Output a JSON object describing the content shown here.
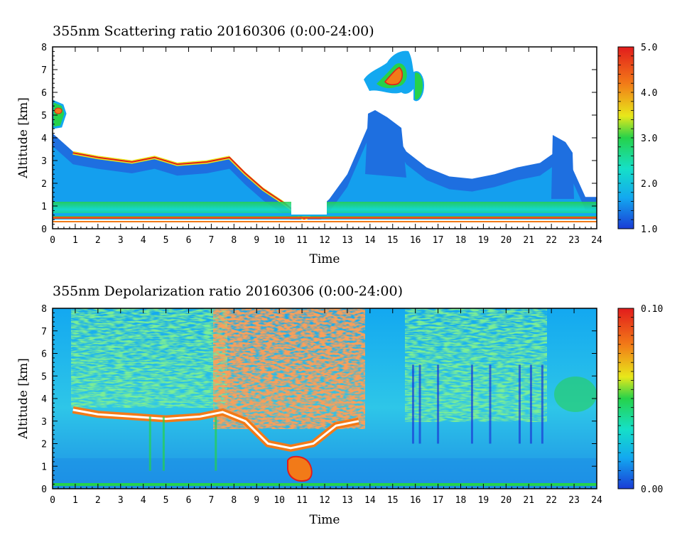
{
  "chart_data": [
    {
      "type": "heatmap",
      "title": "355nm Scattering ratio  20160306 (0:00-24:00)",
      "xlabel": "Time",
      "ylabel": "Altitude [km]",
      "xlim": [
        0,
        24
      ],
      "ylim": [
        0,
        8
      ],
      "xticks": [
        "0",
        "1",
        "2",
        "3",
        "4",
        "5",
        "6",
        "7",
        "8",
        "9",
        "10",
        "11",
        "12",
        "13",
        "14",
        "15",
        "16",
        "17",
        "18",
        "19",
        "20",
        "21",
        "22",
        "23",
        "24"
      ],
      "yticks": [
        "0",
        "1",
        "2",
        "3",
        "4",
        "5",
        "6",
        "7",
        "8"
      ],
      "colorbar": {
        "range": [
          1.0,
          5.0
        ],
        "labels": [
          "1.0",
          "2.0",
          "3.0",
          "4.0",
          "5.0"
        ],
        "colors": [
          "#1a3cd6",
          "#13a8f0",
          "#15e0c8",
          "#26d24a",
          "#e8e81a",
          "#f27a18",
          "#e21c1c"
        ]
      },
      "layers": [
        {
          "name": "cloud-top",
          "time": [
            0,
            0.9,
            2,
            3.5,
            4.5,
            5.5,
            6.8,
            7.8,
            8.5,
            9.3,
            10.2,
            11.2,
            12.2,
            13,
            14,
            15,
            15.6,
            16.5,
            17.5,
            18.5,
            19.5,
            20.5,
            21.5,
            22.5,
            23.5,
            24
          ],
          "top_km": [
            4.2,
            3.4,
            3.2,
            3.0,
            3.2,
            2.9,
            3.0,
            3.2,
            2.5,
            1.8,
            1.2,
            0.4,
            1.3,
            2.4,
            4.7,
            4.4,
            3.4,
            2.7,
            2.3,
            2.2,
            2.4,
            2.7,
            2.9,
            3.6,
            1.4,
            1.4
          ]
        },
        {
          "name": "upper-cloud",
          "time_range": [
            13.7,
            16.3
          ],
          "altitude_km": [
            5.8,
            8.0
          ]
        }
      ]
    },
    {
      "type": "heatmap",
      "title": "355nm Depolarization ratio  20160306 (0:00-24:00)",
      "xlabel": "Time",
      "ylabel": "Altitude [km]",
      "xlim": [
        0,
        24
      ],
      "ylim": [
        0,
        8
      ],
      "xticks": [
        "0",
        "1",
        "2",
        "3",
        "4",
        "5",
        "6",
        "7",
        "8",
        "9",
        "10",
        "11",
        "12",
        "13",
        "14",
        "15",
        "16",
        "17",
        "18",
        "19",
        "20",
        "21",
        "22",
        "23",
        "24"
      ],
      "yticks": [
        "0",
        "1",
        "2",
        "3",
        "4",
        "5",
        "6",
        "7",
        "8"
      ],
      "colorbar": {
        "range": [
          0.0,
          0.1
        ],
        "labels": [
          "0.00",
          "0.10"
        ],
        "colors": [
          "#1a3cd6",
          "#13a8f0",
          "#15e0c8",
          "#26d24a",
          "#e8e81a",
          "#f27a18",
          "#e21c1c"
        ]
      },
      "layers": [
        {
          "name": "cloud-base",
          "time": [
            0.9,
            2,
            3.5,
            5,
            6.5,
            7.5,
            8.5,
            9.5,
            10.5,
            11.5,
            12.5,
            13.5
          ],
          "base_km": [
            3.5,
            3.3,
            3.2,
            3.1,
            3.2,
            3.4,
            3.0,
            2.0,
            1.8,
            2.0,
            2.8,
            3.0
          ]
        },
        {
          "name": "noisy-region",
          "time_range": [
            7.5,
            13.7
          ],
          "altitude_km": [
            2.0,
            8.0
          ]
        }
      ]
    }
  ]
}
